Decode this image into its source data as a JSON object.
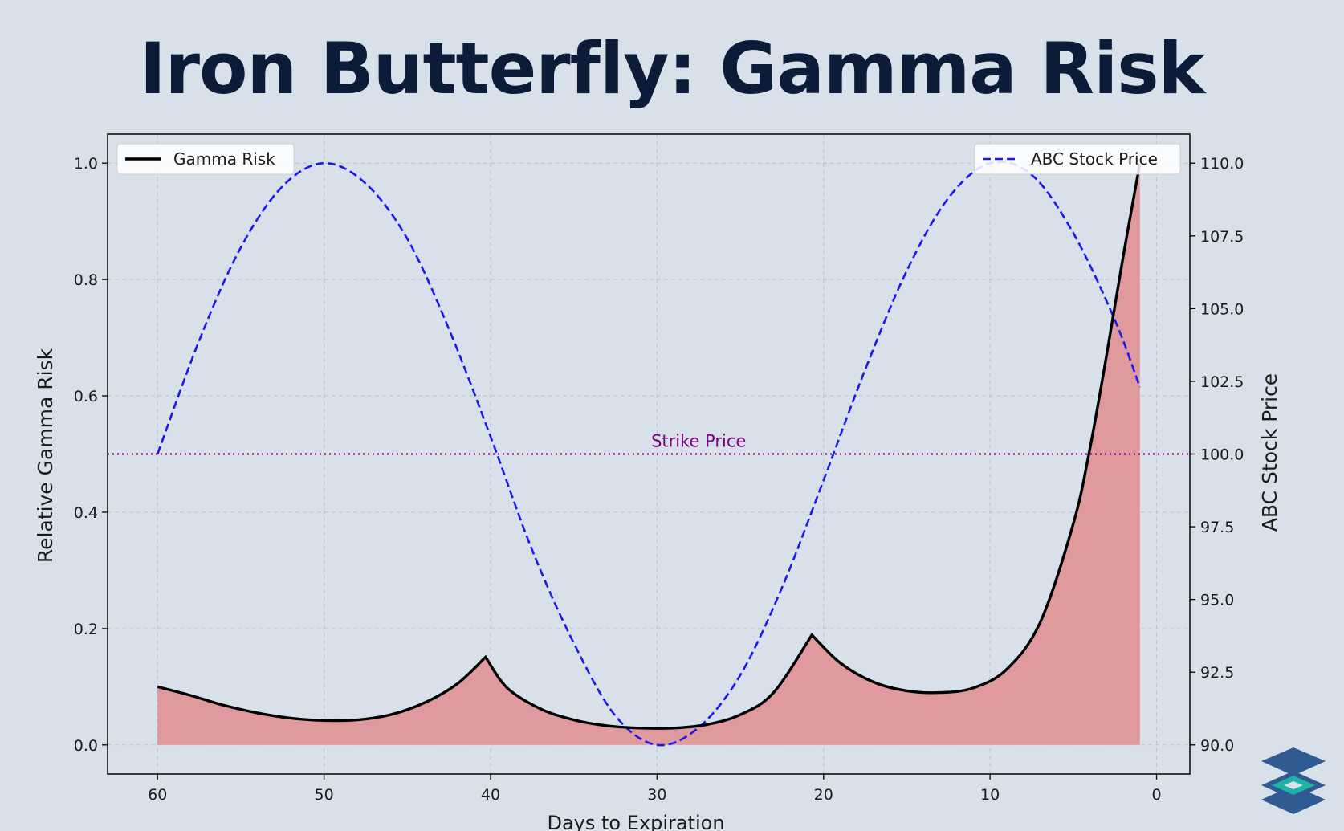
{
  "title": "Iron Butterfly: Gamma Risk",
  "chart_data": {
    "type": "line",
    "x_axis": {
      "label": "Days to Expiration",
      "lim": [
        63,
        -2
      ],
      "ticks": [
        60,
        50,
        40,
        30,
        20,
        10,
        0
      ],
      "tick_labels": [
        "60",
        "50",
        "40",
        "30",
        "20",
        "10",
        "0"
      ],
      "inverted": true
    },
    "y_axis_left": {
      "label": "Relative Gamma Risk",
      "lim": [
        -0.05,
        1.05
      ],
      "ticks": [
        0.0,
        0.2,
        0.4,
        0.6,
        0.8,
        1.0
      ],
      "tick_labels": [
        "0.0",
        "0.2",
        "0.4",
        "0.6",
        "0.8",
        "1.0"
      ]
    },
    "y_axis_right": {
      "label": "ABC Stock Price",
      "lim": [
        89,
        111
      ],
      "ticks": [
        90.0,
        92.5,
        95.0,
        97.5,
        100.0,
        102.5,
        105.0,
        107.5,
        110.0
      ],
      "tick_labels": [
        "90.0",
        "92.5",
        "95.0",
        "97.5",
        "100.0",
        "102.5",
        "105.0",
        "107.5",
        "110.0"
      ]
    },
    "grid": true,
    "series": [
      {
        "name": "Gamma Risk",
        "axis": "left",
        "style": "solid",
        "color": "#000000",
        "fill_color": "#e0999c",
        "x": [
          60,
          58,
          56,
          54,
          52,
          50,
          48,
          46,
          44,
          42,
          40.3,
          39,
          37,
          35,
          33,
          31,
          29,
          27,
          25,
          23,
          20.7,
          19,
          17,
          15,
          13,
          11,
          9,
          7,
          5,
          4,
          3,
          2,
          1
        ],
        "y": [
          0.1,
          0.085,
          0.068,
          0.055,
          0.046,
          0.042,
          0.043,
          0.052,
          0.072,
          0.105,
          0.151,
          0.098,
          0.062,
          0.043,
          0.033,
          0.029,
          0.029,
          0.035,
          0.052,
          0.09,
          0.189,
          0.141,
          0.108,
          0.093,
          0.09,
          0.098,
          0.13,
          0.21,
          0.38,
          0.51,
          0.67,
          0.84,
          1.0
        ]
      },
      {
        "name": "ABC Stock Price",
        "axis": "right",
        "style": "dashed",
        "color": "#1a1aee",
        "x": [
          60,
          57.5,
          55,
          52.5,
          50,
          47.5,
          45,
          42.5,
          40,
          37.5,
          35,
          32.5,
          30,
          27.5,
          25,
          22.5,
          20,
          17.5,
          15,
          12.5,
          10,
          7.5,
          5,
          2.5,
          1
        ],
        "y": [
          100.0,
          103.9,
          107.1,
          109.2,
          110.0,
          109.3,
          107.4,
          104.3,
          100.6,
          96.7,
          93.5,
          91.0,
          90.0,
          90.6,
          92.4,
          95.4,
          99.1,
          102.9,
          106.3,
          108.8,
          110.0,
          109.6,
          107.6,
          104.6,
          102.3
        ]
      }
    ],
    "reference_line": {
      "label": "Strike Price",
      "value": 100.0,
      "axis": "right",
      "color": "#800080",
      "style": "dotted"
    },
    "legends": [
      {
        "entry": "Gamma Risk",
        "placement": "top-left"
      },
      {
        "entry": "ABC Stock Price",
        "placement": "top-right"
      }
    ]
  },
  "colors": {
    "background": "#d8e0ea",
    "title": "#0c1b38",
    "grid": "#b9c1cc",
    "logo_dark": "#2f5a92",
    "logo_teal": "#1fb3a6"
  }
}
